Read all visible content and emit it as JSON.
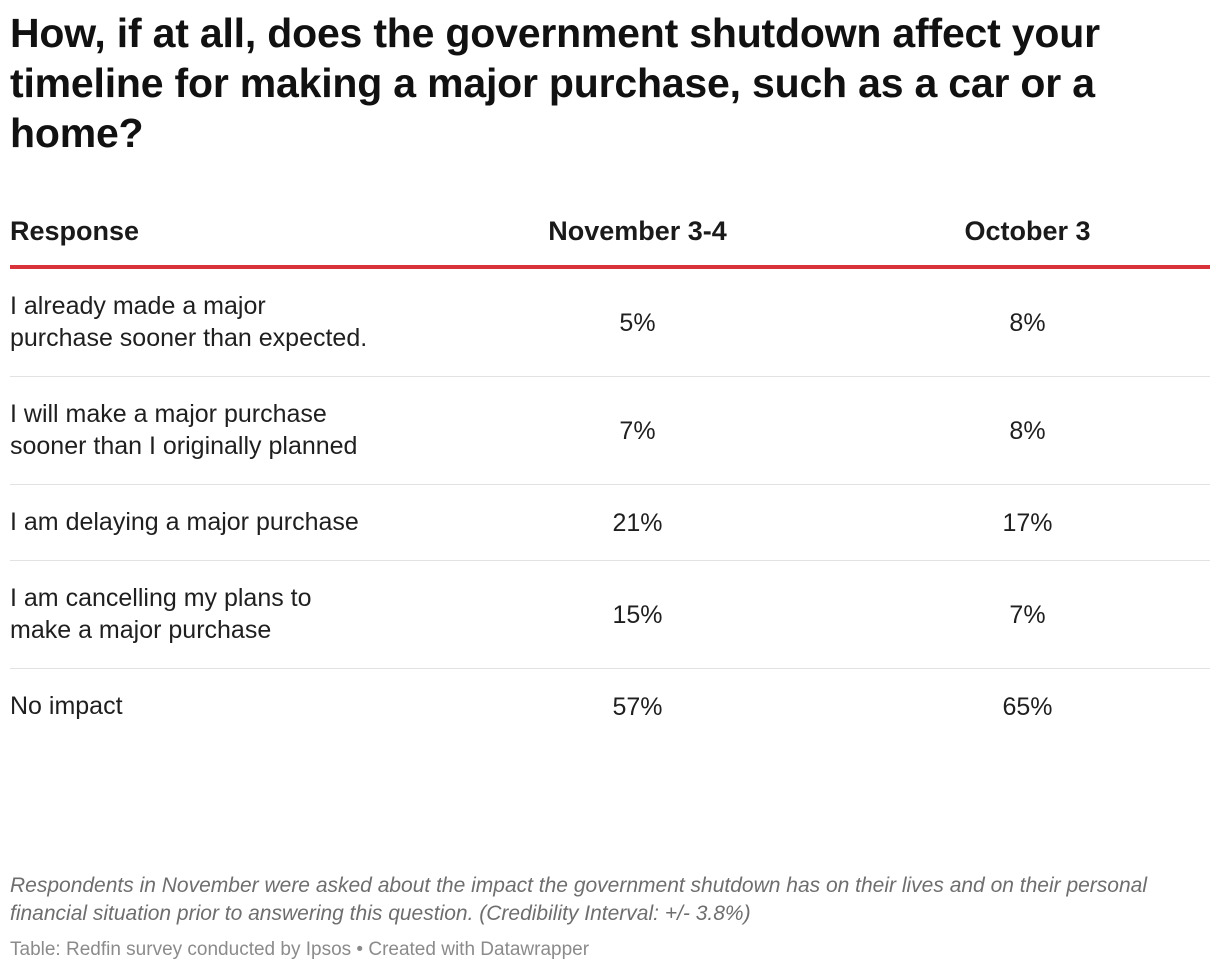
{
  "chart_data": {
    "type": "table",
    "title": "How, if at all, does the government shutdown affect your timeline for making a major purchase, such as a car or a home?",
    "columns": [
      "Response",
      "November 3-4",
      "October 3"
    ],
    "rows": [
      {
        "response": "I already made a major purchase sooner than expected.",
        "november": "5%",
        "october": "8%"
      },
      {
        "response": "I will make a major purchase sooner than I originally planned",
        "november": "7%",
        "october": "8%"
      },
      {
        "response": "I am delaying a major purchase",
        "november": "21%",
        "october": "17%"
      },
      {
        "response": "I am cancelling my plans to make a major purchase",
        "november": "15%",
        "october": "7%"
      },
      {
        "response": "No impact",
        "november": "57%",
        "october": "65%"
      }
    ],
    "notes": "Respondents in November were asked about the impact the government shutdown has on their lives and on their personal financial situation prior to answering this question. (Credibility Interval: +/- 3.8%)",
    "source": "Table: Redfin survey conducted by Ipsos • Created with Datawrapper"
  },
  "colors": {
    "header_rule": "#d8323a",
    "row_divider": "#e2e2e2",
    "notes_text": "#6e6e6e",
    "source_text": "#8b8b8b"
  }
}
